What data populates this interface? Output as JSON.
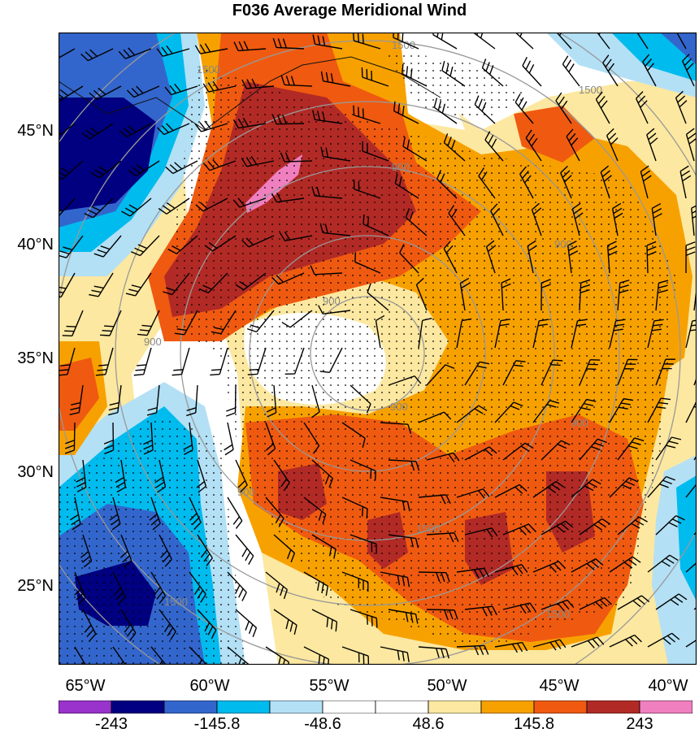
{
  "title": "F036 Average Meridional Wind",
  "lat_ticks": [
    "45°N",
    "40°N",
    "35°N",
    "30°N",
    "25°N"
  ],
  "lon_ticks": [
    "65°W",
    "60°W",
    "55°W",
    "50°W",
    "45°W",
    "40°W"
  ],
  "height_contour_labels": [
    "1500",
    "1500",
    "1500",
    "900",
    "900",
    "900",
    "900",
    "900",
    "900",
    "900",
    "1500",
    "1500",
    "1500"
  ],
  "colorbar": {
    "labels": [
      "-243",
      "-145.8",
      "-48.6",
      "48.6",
      "145.8",
      "243"
    ],
    "colors": [
      "#9933cc",
      "#000080",
      "#3366cc",
      "#00bbee",
      "#b3e0f5",
      "#ffffff",
      "#ffffff",
      "#fce8a0",
      "#f7a100",
      "#ef5a10",
      "#b22a25",
      "#f07fbf"
    ]
  },
  "colors": {
    "strong_negative": "#000080",
    "negative": "#3366cc",
    "moderate_negative": "#00bbee",
    "weak_negative": "#b3e0f5",
    "neutral": "#ffffff",
    "weak_positive": "#fce8a0",
    "moderate_positive": "#f7a100",
    "positive": "#ef5a10",
    "strong_positive": "#b22a25",
    "extreme_positive": "#f07fbf",
    "contour": "#999999"
  }
}
